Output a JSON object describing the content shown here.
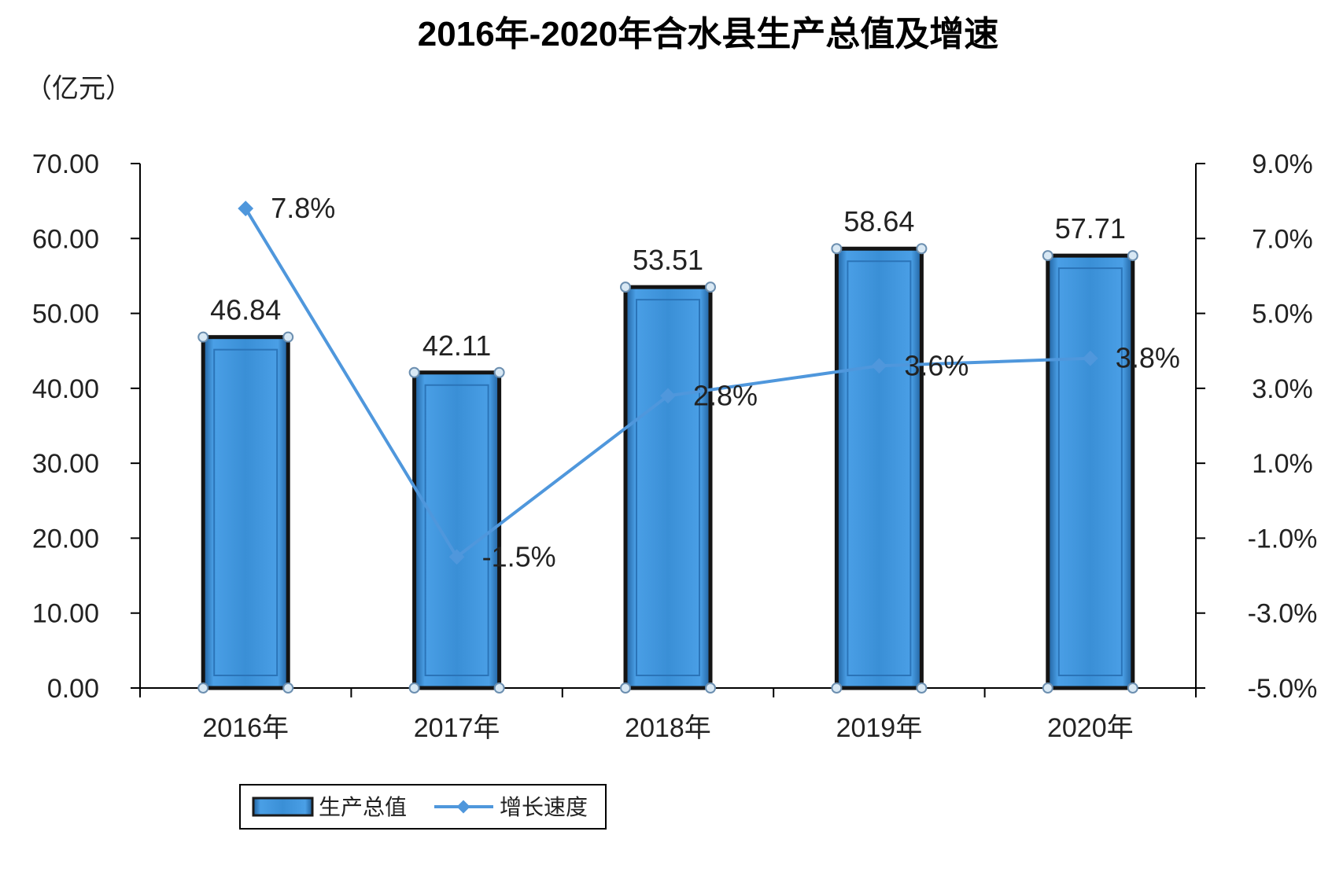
{
  "chart_data": {
    "type": "bar",
    "title": "2016年-2020年合水县生产总值及增速",
    "y_unit": "（亿元）",
    "categories": [
      "2016年",
      "2017年",
      "2018年",
      "2019年",
      "2020年"
    ],
    "series": [
      {
        "name": "生产总值",
        "kind": "bar",
        "axis": "left",
        "values": [
          46.84,
          42.11,
          53.51,
          58.64,
          57.71
        ],
        "labels": [
          "46.84",
          "42.11",
          "53.51",
          "58.64",
          "57.71"
        ],
        "color": "#3a8fd6"
      },
      {
        "name": "增长速度",
        "kind": "line",
        "axis": "right",
        "values": [
          7.8,
          -1.5,
          2.8,
          3.6,
          3.8
        ],
        "labels": [
          "7.8%",
          "-1.5%",
          "2.8%",
          "3.6%",
          "3.8%"
        ],
        "color": "#4f97dc"
      }
    ],
    "y_left": {
      "min": 0,
      "max": 70,
      "step": 10,
      "ticks": [
        "0.00",
        "10.00",
        "20.00",
        "30.00",
        "40.00",
        "50.00",
        "60.00",
        "70.00"
      ]
    },
    "y_right": {
      "min": -5,
      "max": 9,
      "step": 2,
      "ticks": [
        "-5.0%",
        "-3.0%",
        "-1.0%",
        "1.0%",
        "3.0%",
        "5.0%",
        "7.0%",
        "9.0%"
      ]
    },
    "grid": false,
    "legend_position": "bottom-left"
  }
}
